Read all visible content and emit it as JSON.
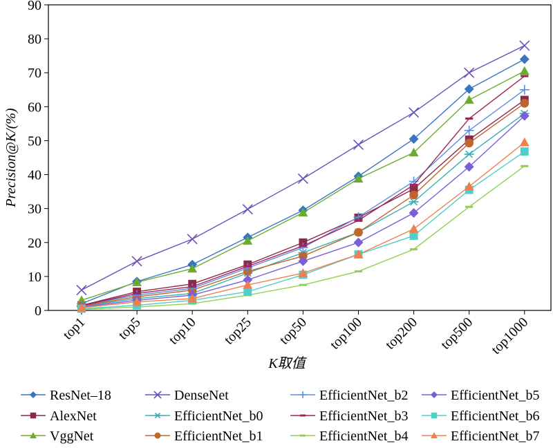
{
  "chart_data": {
    "type": "line",
    "x_label": "K取值",
    "y_label": "Precision@K/(%)",
    "categories": [
      "top1",
      "top5",
      "top10",
      "top25",
      "top50",
      "top100",
      "top200",
      "top500",
      "top1000"
    ],
    "ylim": [
      0,
      90
    ],
    "yticks": [
      0,
      10,
      20,
      30,
      40,
      50,
      60,
      70,
      80,
      90
    ],
    "series": [
      {
        "name": "ResNet–18",
        "color": "#3a75c4",
        "marker": "diamond",
        "values": [
          2,
          8.5,
          13.5,
          21.5,
          29.5,
          39.5,
          50.5,
          65.2,
          74
        ]
      },
      {
        "name": "AlexNet",
        "color": "#8b2a4a",
        "marker": "square",
        "values": [
          1.5,
          5.5,
          7.8,
          13.5,
          20,
          27.3,
          35.8,
          50.3,
          62
        ]
      },
      {
        "name": "VggNet",
        "color": "#6aad2e",
        "marker": "triangle",
        "values": [
          3,
          8.3,
          12.3,
          20.5,
          28.8,
          38.8,
          46.5,
          62,
          70.5
        ]
      },
      {
        "name": "DenseNet",
        "color": "#6b4fbb",
        "marker": "x",
        "values": [
          6,
          14.5,
          21,
          29.8,
          38.8,
          48.8,
          58.3,
          70,
          78
        ]
      },
      {
        "name": "EfficientNet_b0",
        "color": "#3aaeb0",
        "marker": "asterisk",
        "values": [
          1.2,
          3.5,
          5,
          11,
          17,
          23,
          32,
          46,
          58
        ]
      },
      {
        "name": "EfficientNet_b1",
        "color": "#c0652e",
        "marker": "circle",
        "values": [
          1.3,
          4,
          6,
          11.5,
          16,
          23,
          34,
          49.3,
          61
        ]
      },
      {
        "name": "EfficientNet_b2",
        "color": "#5b8fe0",
        "marker": "plus",
        "values": [
          1.5,
          4.5,
          6.5,
          12.5,
          18.5,
          27.5,
          38,
          53,
          65
        ]
      },
      {
        "name": "EfficientNet_b3",
        "color": "#a3245a",
        "marker": "dash",
        "values": [
          1.4,
          5,
          7,
          13,
          19,
          26.5,
          37,
          56.5,
          69
        ]
      },
      {
        "name": "EfficientNet_b4",
        "color": "#8fd14f",
        "marker": "dash",
        "values": [
          0.3,
          1,
          2,
          4.5,
          7.5,
          11.5,
          18,
          30.5,
          42.5
        ]
      },
      {
        "name": "EfficientNet_b5",
        "color": "#7a5fd6",
        "marker": "diamond",
        "values": [
          1,
          3,
          4.5,
          9,
          14.5,
          20,
          28.7,
          42.3,
          57.3
        ]
      },
      {
        "name": "EfficientNet_b6",
        "color": "#4fcfc9",
        "marker": "square",
        "values": [
          0.5,
          1.5,
          3,
          5.5,
          10.5,
          16.5,
          22,
          35.5,
          46.8
        ]
      },
      {
        "name": "EfficientNet_b7",
        "color": "#f07f4f",
        "marker": "triangle",
        "values": [
          0.8,
          2.5,
          3.5,
          7.5,
          11,
          16.5,
          24,
          36.5,
          49.5
        ]
      }
    ]
  }
}
